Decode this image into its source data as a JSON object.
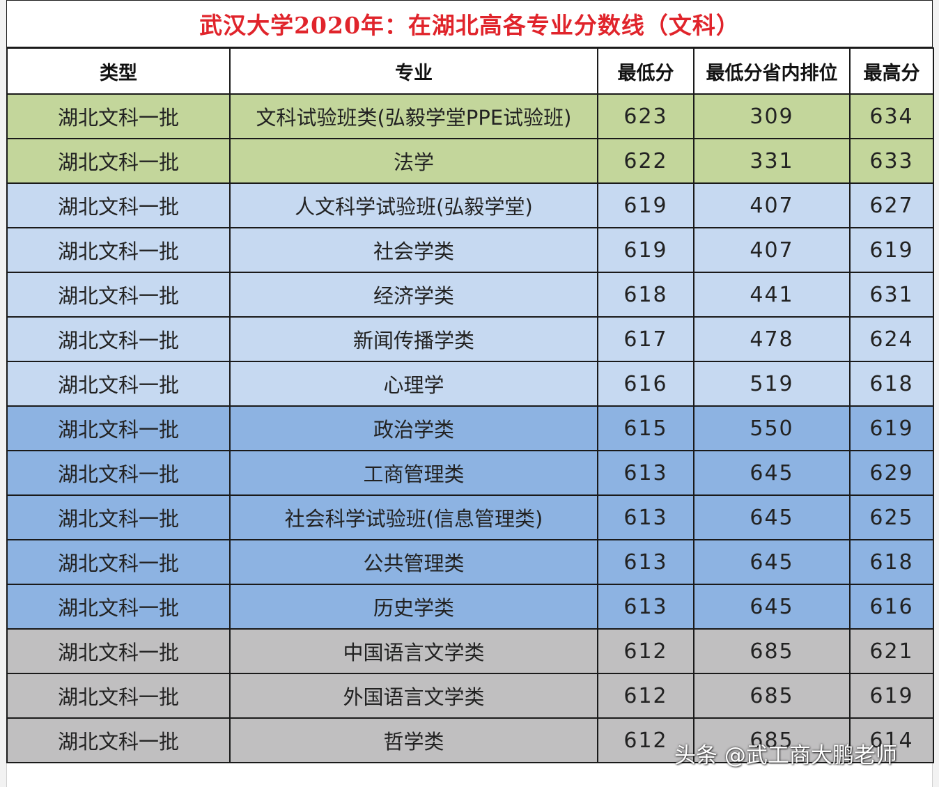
{
  "title": "武汉大学2020年：在湖北高各专业分数线（文科）",
  "columns": [
    "类型",
    "专业",
    "最低分",
    "最低分省内排位",
    "最高分"
  ],
  "row_groups": [
    {
      "color": "#c3d69b",
      "rows": [
        {
          "type": "湖北文科一批",
          "major": "文科试验班类(弘毅学堂PPE试验班)",
          "min": "623",
          "rank": "309",
          "max": "634"
        },
        {
          "type": "湖北文科一批",
          "major": "法学",
          "min": "622",
          "rank": "331",
          "max": "633"
        }
      ]
    },
    {
      "color": "#c6d9f1",
      "rows": [
        {
          "type": "湖北文科一批",
          "major": "人文科学试验班(弘毅学堂)",
          "min": "619",
          "rank": "407",
          "max": "627"
        },
        {
          "type": "湖北文科一批",
          "major": "社会学类",
          "min": "619",
          "rank": "407",
          "max": "619"
        },
        {
          "type": "湖北文科一批",
          "major": "经济学类",
          "min": "618",
          "rank": "441",
          "max": "631"
        },
        {
          "type": "湖北文科一批",
          "major": "新闻传播学类",
          "min": "617",
          "rank": "478",
          "max": "624"
        },
        {
          "type": "湖北文科一批",
          "major": "心理学",
          "min": "616",
          "rank": "519",
          "max": "618"
        }
      ]
    },
    {
      "color": "#8db3e2",
      "rows": [
        {
          "type": "湖北文科一批",
          "major": "政治学类",
          "min": "615",
          "rank": "550",
          "max": "619"
        },
        {
          "type": "湖北文科一批",
          "major": "工商管理类",
          "min": "613",
          "rank": "645",
          "max": "629"
        },
        {
          "type": "湖北文科一批",
          "major": "社会科学试验班(信息管理类)",
          "min": "613",
          "rank": "645",
          "max": "625"
        },
        {
          "type": "湖北文科一批",
          "major": "公共管理类",
          "min": "613",
          "rank": "645",
          "max": "618"
        },
        {
          "type": "湖北文科一批",
          "major": "历史学类",
          "min": "613",
          "rank": "645",
          "max": "616"
        }
      ]
    },
    {
      "color": "#c0bfc0",
      "rows": [
        {
          "type": "湖北文科一批",
          "major": "中国语言文学类",
          "min": "612",
          "rank": "685",
          "max": "621"
        },
        {
          "type": "湖北文科一批",
          "major": "外国语言文学类",
          "min": "612",
          "rank": "685",
          "max": "619"
        },
        {
          "type": "湖北文科一批",
          "major": "哲学类",
          "min": "612",
          "rank": "685",
          "max": "614"
        }
      ]
    }
  ],
  "watermark": "头条 @武工商大鹏老师",
  "colors": {
    "title_text": "#e0242b",
    "border": "#1a1a1a"
  }
}
